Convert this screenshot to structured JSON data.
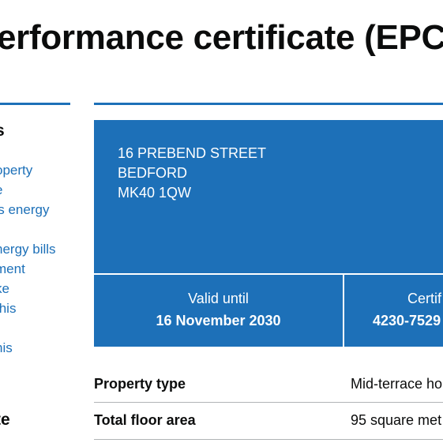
{
  "page": {
    "title": "erformance certificate (EPC"
  },
  "sidebar": {
    "heading": "s",
    "links": [
      "operty",
      "e",
      "'s energy",
      "",
      "nergy bills",
      "ment",
      "ke",
      "this",
      "",
      "his"
    ],
    "heading_2": "te"
  },
  "property": {
    "address_line_1": "16 PREBEND STREET",
    "address_line_2": "BEDFORD",
    "postcode": "MK40 1QW"
  },
  "validity": {
    "label": "Valid until",
    "value": "16 November 2030"
  },
  "certificate": {
    "label": "Certif",
    "value": "4230-7529"
  },
  "summary": {
    "rows": [
      {
        "key": "Property type",
        "value": "Mid-terrace ho"
      },
      {
        "key": "Total floor area",
        "value": "95 square met"
      }
    ]
  },
  "colors": {
    "brand_blue": "#1d70b8",
    "text": "#0b0c0c",
    "divider": "#b1b4b6"
  }
}
